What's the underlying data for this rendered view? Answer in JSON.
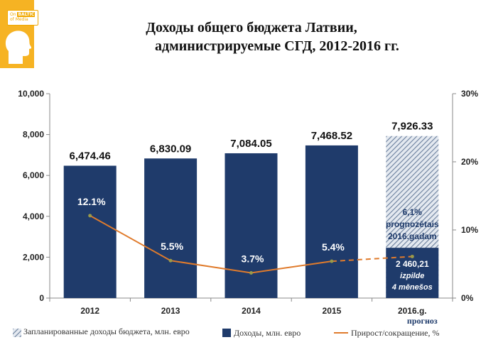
{
  "logo": {
    "badge_line1": "BALTIC",
    "badge_line2": "of Media",
    "badge_prefix": "On"
  },
  "title_line1": "Доходы общего бюджета Латвии,",
  "title_line2": "администрируемые СГД, 2012-2016 гг.",
  "chart_data": {
    "type": "bar",
    "categories": [
      "2012",
      "2013",
      "2014",
      "2015",
      "2016.g."
    ],
    "category_sublabel": "прогноз",
    "series": [
      {
        "name": "Доходы, млн. евро",
        "values": [
          6474.46,
          6830.09,
          7084.05,
          7468.52,
          2460.21
        ],
        "color": "#1f3b6b"
      },
      {
        "name": "Запланированные доходы бюджета, млн. евро",
        "values": [
          null,
          null,
          null,
          null,
          7926.33
        ],
        "color": "#b8c4d4",
        "pattern": "hatched"
      },
      {
        "name": "Прирост/сокращение, %",
        "type": "line",
        "axis": "right",
        "values": [
          12.1,
          5.5,
          3.7,
          5.4,
          6.1
        ],
        "color": "#e07b2c"
      }
    ],
    "bar_labels": [
      "6,474.46",
      "6,830.09",
      "7,084.05",
      "7,468.52",
      "7,926.33"
    ],
    "growth_labels": [
      "12.1%",
      "5.5%",
      "3.7%",
      "5.4%"
    ],
    "forecast_label": [
      "6,1%",
      "prognozētais",
      "2016.gadam"
    ],
    "actual_label": [
      "2 460,21",
      "izpilde",
      "4 mēnešos"
    ],
    "y_left": {
      "min": 0,
      "max": 10000,
      "ticks": [
        "0",
        "2,000",
        "4,000",
        "6,000",
        "8,000",
        "10,000"
      ]
    },
    "y_right": {
      "min": 0,
      "max": 30,
      "ticks": [
        "0%",
        "10%",
        "20%",
        "30%"
      ]
    },
    "grid": false,
    "legend_position": "bottom"
  }
}
